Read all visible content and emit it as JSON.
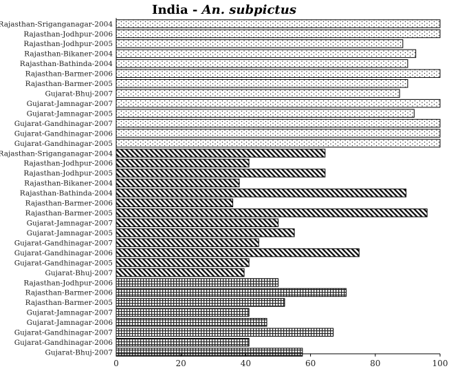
{
  "chart_data": {
    "type": "bar",
    "orientation": "horizontal",
    "title": "India - ",
    "title_italic": "An. subpictus",
    "xlabel": "",
    "ylabel": "",
    "xlim": [
      0,
      100
    ],
    "xticks": [
      0,
      20,
      40,
      60,
      80,
      100
    ],
    "grid": false,
    "legend": "none",
    "groups": [
      {
        "pattern": "dots",
        "bars": [
          {
            "label": "Rajasthan-Sriganganagar-2004",
            "value": 100
          },
          {
            "label": "Rajasthan-Jodhpur-2006",
            "value": 100
          },
          {
            "label": "Rajasthan-Jodhpur-2005",
            "value": 88.5
          },
          {
            "label": "Rajasthan-Bikaner-2004",
            "value": 92.5
          },
          {
            "label": "Rajasthan-Bathinda-2004",
            "value": 90
          },
          {
            "label": "Rajasthan-Barmer-2006",
            "value": 100
          },
          {
            "label": "Rajasthan-Barmer-2005",
            "value": 90
          },
          {
            "label": "Gujarat-Bhuj-2007",
            "value": 87.5
          },
          {
            "label": "Gujarat-Jamnagar-2007",
            "value": 100
          },
          {
            "label": "Gujarat-Jamnagar-2005",
            "value": 92
          },
          {
            "label": "Gujarat-Gandhinagar-2007",
            "value": 100
          },
          {
            "label": "Gujarat-Gandhinagar-2006",
            "value": 100
          },
          {
            "label": "Gujarat-Gandhinagar-2005",
            "value": 100
          }
        ]
      },
      {
        "pattern": "diagonal",
        "bars": [
          {
            "label": "Rajasthan-Sriganganagar-2004",
            "value": 64.5
          },
          {
            "label": "Rajasthan-Jodhpur-2006",
            "value": 41
          },
          {
            "label": "Rajasthan-Jodhpur-2005",
            "value": 64.5
          },
          {
            "label": "Rajasthan-Bikaner-2004",
            "value": 38
          },
          {
            "label": "Rajasthan-Bathinda-2004",
            "value": 89.5
          },
          {
            "label": "Rajasthan-Barmer-2006",
            "value": 36
          },
          {
            "label": "Rajasthan-Barmer-2005",
            "value": 96
          },
          {
            "label": "Gujarat-Jamnagar-2007",
            "value": 50
          },
          {
            "label": "Gujarat-Jamnagar-2005",
            "value": 55
          },
          {
            "label": "Gujarat-Gandhinagar-2007",
            "value": 44
          },
          {
            "label": "Gujarat-Gandhinagar-2006",
            "value": 75
          },
          {
            "label": "Gujarat-Gandhinagar-2005",
            "value": 41
          },
          {
            "label": "Gujarat-Bhuj-2007",
            "value": 39.5
          }
        ]
      },
      {
        "pattern": "grid",
        "bars": [
          {
            "label": "Rajasthan-Jodhpur-2006",
            "value": 50
          },
          {
            "label": "Rajasthan-Barmer-2006",
            "value": 71
          },
          {
            "label": "Rajasthan-Barmer-2005",
            "value": 52
          },
          {
            "label": "Gujarat-Jamnagar-2007",
            "value": 41
          },
          {
            "label": "Gujarat-Jamnagar-2006",
            "value": 46.5
          },
          {
            "label": "Gujarat-Gandhinagar-2007",
            "value": 67
          },
          {
            "label": "Gujarat-Gandhinagar-2006",
            "value": 41
          },
          {
            "label": "Gujarat-Bhuj-2007",
            "value": 57.5
          }
        ]
      }
    ]
  }
}
